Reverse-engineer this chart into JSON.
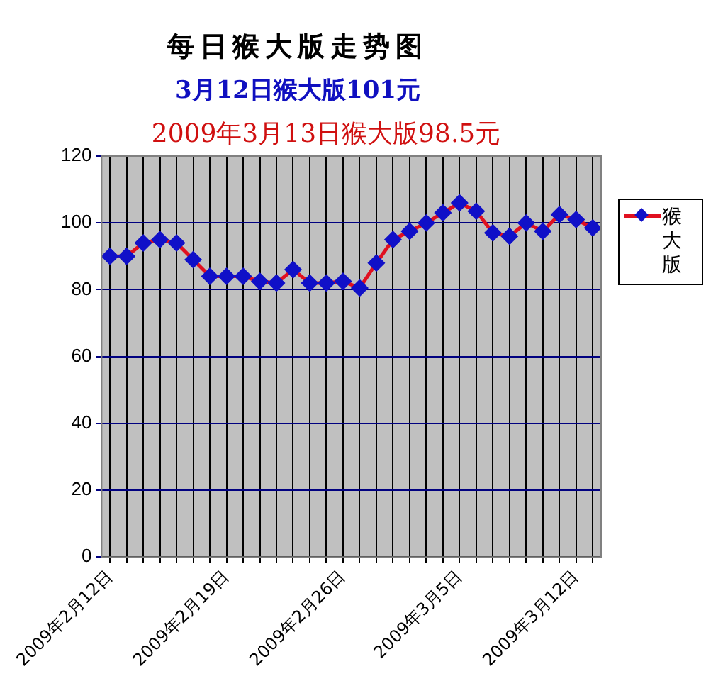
{
  "chart_data": {
    "type": "line",
    "title": "每日猴大版走势图",
    "subtitle": "3月12日猴大版101元",
    "annotations": [
      "2009年3月13日猴大版98.5元"
    ],
    "categories": [
      "2009年2月12日",
      null,
      null,
      null,
      null,
      null,
      null,
      "2009年2月19日",
      null,
      null,
      null,
      null,
      null,
      null,
      "2009年2月26日",
      null,
      null,
      null,
      null,
      null,
      null,
      "2009年3月5日",
      null,
      null,
      null,
      null,
      null,
      null,
      "2009年3月12日",
      null
    ],
    "series": [
      {
        "name": "猴大版",
        "color": "#e01020",
        "values": [
          90,
          90,
          94,
          95,
          94,
          89,
          84,
          84,
          84,
          82.5,
          82,
          86,
          82,
          82,
          82.5,
          80.5,
          88,
          95,
          97.5,
          100,
          103,
          106,
          103.5,
          97,
          96,
          100,
          97.5,
          102.5,
          101,
          98.5
        ]
      }
    ],
    "ylim": [
      0,
      120
    ],
    "yticks": [
      0,
      20,
      40,
      60,
      80,
      100,
      120
    ],
    "grid": true,
    "legend": "right",
    "marker": "diamond",
    "line_style": "solid"
  }
}
